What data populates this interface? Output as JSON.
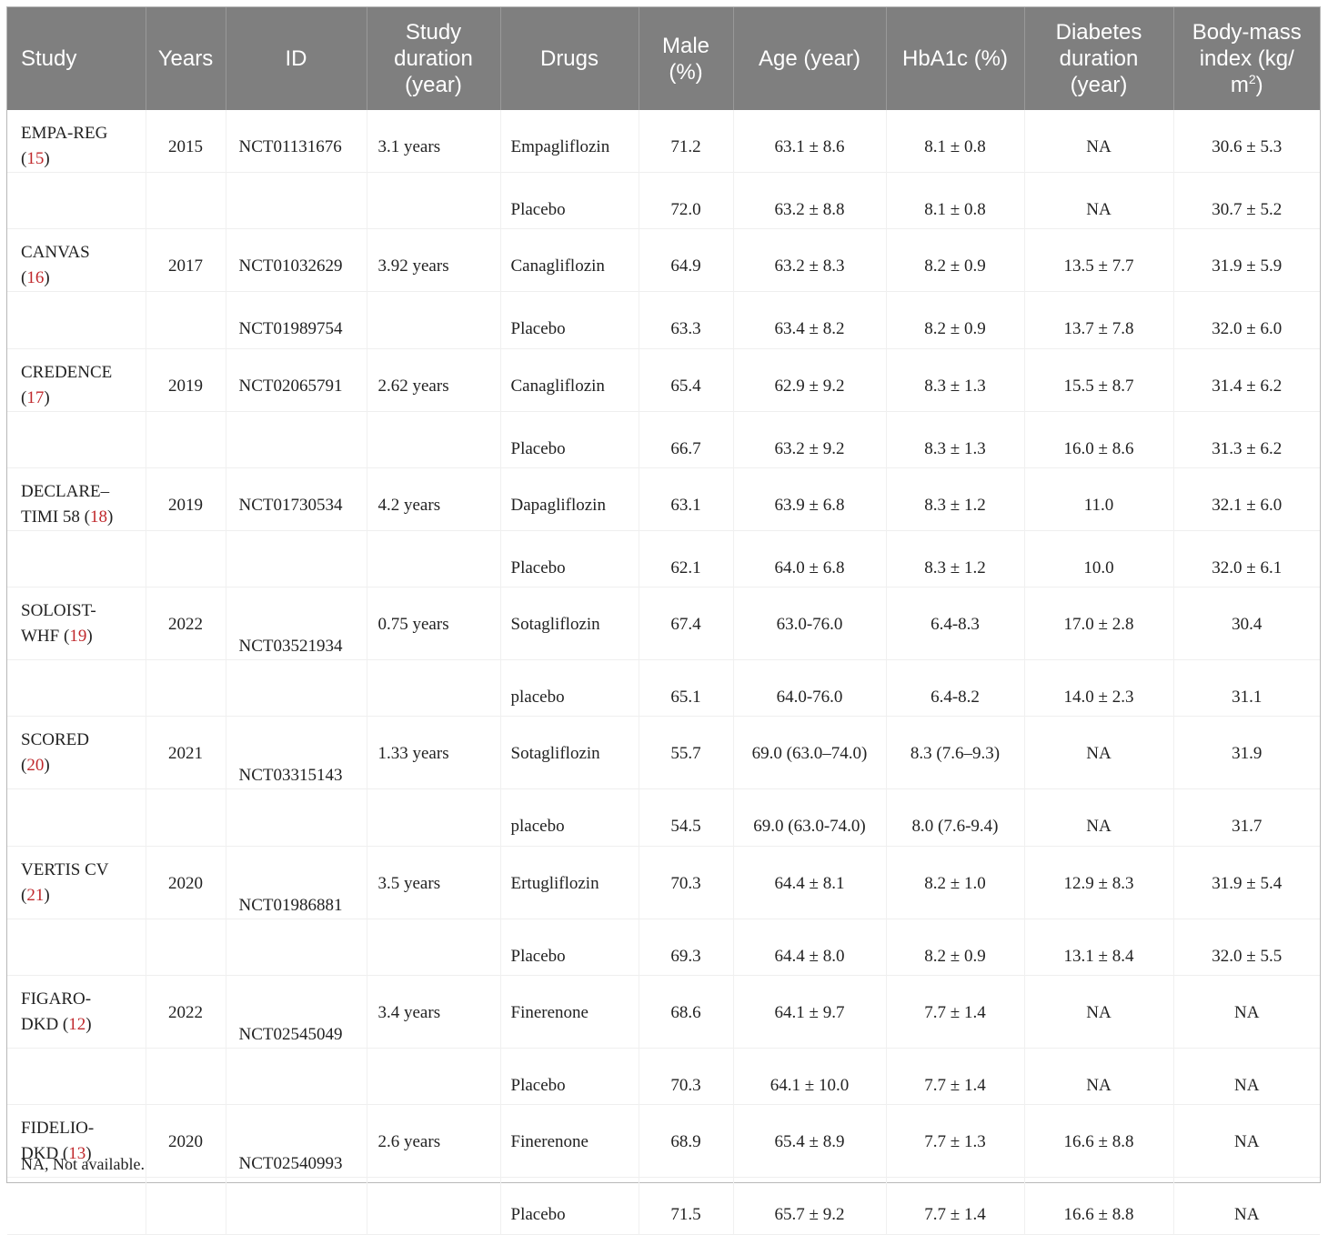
{
  "headers": {
    "study": "Study",
    "years": "Years",
    "id": "ID",
    "duration_l1": "Study",
    "duration_l2": "duration",
    "duration_l3": "(year)",
    "drugs": "Drugs",
    "male_l1": "Male",
    "male_l2": "(%)",
    "age": "Age (year)",
    "hba1c": "HbA1c (%)",
    "diabetes_l1": "Diabetes",
    "diabetes_l2": "duration",
    "diabetes_l3": "(year)",
    "bmi_l1": "Body-mass",
    "bmi_l2": "index (kg/",
    "bmi_l3": "m",
    "bmi_sup": "2",
    "bmi_l3_end": ")"
  },
  "studies": [
    {
      "name1": "EMPA-REG",
      "name2": "(",
      "ref": "15",
      "name_end": ")",
      "year": "2015",
      "id_a": "NCT01131676",
      "id_b": "",
      "duration": "3.1 years",
      "arms": [
        {
          "drug": "Empagliflozin",
          "male": "71.2",
          "age": "63.1 ± 8.6",
          "hba1c": "8.1 ± 0.8",
          "diabetes": "NA",
          "bmi": "30.6 ± 5.3"
        },
        {
          "drug": "Placebo",
          "male": "72.0",
          "age": "63.2 ± 8.8",
          "hba1c": "8.1 ± 0.8",
          "diabetes": "NA",
          "bmi": "30.7 ± 5.2"
        }
      ]
    },
    {
      "name1": "CANVAS",
      "name2": "(",
      "ref": "16",
      "name_end": ")",
      "year": "2017",
      "id_a": "NCT01032629",
      "id_b": "NCT01989754",
      "duration": "3.92 years",
      "arms": [
        {
          "drug": "Canagliflozin",
          "male": "64.9",
          "age": "63.2 ± 8.3",
          "hba1c": "8.2 ± 0.9",
          "diabetes": "13.5 ± 7.7",
          "bmi": "31.9 ± 5.9"
        },
        {
          "drug": "Placebo",
          "male": "63.3",
          "age": "63.4 ± 8.2",
          "hba1c": "8.2 ± 0.9",
          "diabetes": "13.7 ± 7.8",
          "bmi": "32.0 ± 6.0"
        }
      ]
    },
    {
      "name1": "CREDENCE",
      "name2": "(",
      "ref": "17",
      "name_end": ")",
      "year": "2019",
      "id_a": "NCT02065791",
      "id_b": "",
      "duration": "2.62 years",
      "arms": [
        {
          "drug": "Canagliflozin",
          "male": "65.4",
          "age": "62.9 ± 9.2",
          "hba1c": "8.3 ± 1.3",
          "diabetes": "15.5 ± 8.7",
          "bmi": "31.4 ± 6.2"
        },
        {
          "drug": "Placebo",
          "male": "66.7",
          "age": "63.2 ± 9.2",
          "hba1c": "8.3 ± 1.3",
          "diabetes": "16.0 ± 8.6",
          "bmi": "31.3 ± 6.2"
        }
      ]
    },
    {
      "name1": "DECLARE–",
      "name2": "TIMI 58 (",
      "ref": "18",
      "name_end": ")",
      "year": "2019",
      "id_a": "NCT01730534",
      "id_b": "",
      "duration": "4.2 years",
      "arms": [
        {
          "drug": "Dapagliflozin",
          "male": "63.1",
          "age": "63.9 ± 6.8",
          "hba1c": "8.3 ± 1.2",
          "diabetes": "11.0",
          "bmi": "32.1 ± 6.0"
        },
        {
          "drug": "Placebo",
          "male": "62.1",
          "age": "64.0 ± 6.8",
          "hba1c": "8.3 ± 1.2",
          "diabetes": "10.0",
          "bmi": "32.0 ± 6.1"
        }
      ]
    },
    {
      "name1": "SOLOIST-",
      "name2": "WHF (",
      "ref": "19",
      "name_end": ")",
      "year": "2022",
      "id_a": "NCT03521934",
      "id_b": "",
      "duration": "0.75 years",
      "arms": [
        {
          "drug": "Sotagliflozin",
          "male": "67.4",
          "age": "63.0-76.0",
          "hba1c": "6.4-8.3",
          "diabetes": "17.0 ± 2.8",
          "bmi": "30.4"
        },
        {
          "drug": "placebo",
          "male": "65.1",
          "age": "64.0-76.0",
          "hba1c": "6.4-8.2",
          "diabetes": "14.0 ± 2.3",
          "bmi": "31.1"
        }
      ]
    },
    {
      "name1": "SCORED",
      "name2": "(",
      "ref": "20",
      "name_end": ")",
      "year": "2021",
      "id_a": "NCT03315143",
      "id_b": "",
      "duration": "1.33 years",
      "arms": [
        {
          "drug": "Sotagliflozin",
          "male": "55.7",
          "age": "69.0 (63.0–74.0)",
          "hba1c": "8.3 (7.6–9.3)",
          "diabetes": "NA",
          "bmi": "31.9"
        },
        {
          "drug": "placebo",
          "male": "54.5",
          "age": "69.0 (63.0-74.0)",
          "hba1c": "8.0 (7.6-9.4)",
          "diabetes": "NA",
          "bmi": "31.7"
        }
      ]
    },
    {
      "name1": "VERTIS CV",
      "name2": "(",
      "ref": "21",
      "name_end": ")",
      "year": "2020",
      "id_a": "NCT01986881",
      "id_b": "",
      "duration": "3.5 years",
      "arms": [
        {
          "drug": "Ertugliflozin",
          "male": "70.3",
          "age": "64.4 ± 8.1",
          "hba1c": "8.2 ± 1.0",
          "diabetes": "12.9 ± 8.3",
          "bmi": "31.9 ± 5.4"
        },
        {
          "drug": "Placebo",
          "male": "69.3",
          "age": "64.4 ± 8.0",
          "hba1c": "8.2 ± 0.9",
          "diabetes": "13.1 ± 8.4",
          "bmi": "32.0 ± 5.5"
        }
      ]
    },
    {
      "name1": "FIGARO-",
      "name2": "DKD (",
      "ref": "12",
      "name_end": ")",
      "year": "2022",
      "id_a": "NCT02545049",
      "id_b": "",
      "duration": "3.4 years",
      "arms": [
        {
          "drug": "Finerenone",
          "male": "68.6",
          "age": "64.1 ± 9.7",
          "hba1c": "7.7 ± 1.4",
          "diabetes": "NA",
          "bmi": "NA"
        },
        {
          "drug": "Placebo",
          "male": "70.3",
          "age": "64.1 ± 10.0",
          "hba1c": "7.7 ± 1.4",
          "diabetes": "NA",
          "bmi": "NA"
        }
      ]
    },
    {
      "name1": "FIDELIO-",
      "name2": "DKD (",
      "ref": "13",
      "name_end": ")",
      "year": "2020",
      "id_a": "NCT02540993",
      "id_b": "",
      "duration": "2.6 years",
      "arms": [
        {
          "drug": "Finerenone",
          "male": "68.9",
          "age": "65.4 ± 8.9",
          "hba1c": "7.7 ± 1.3",
          "diabetes": "16.6 ± 8.8",
          "bmi": "NA"
        },
        {
          "drug": "Placebo",
          "male": "71.5",
          "age": "65.7 ± 9.2",
          "hba1c": "7.7 ± 1.4",
          "diabetes": "16.6 ± 8.8",
          "bmi": "NA"
        }
      ]
    }
  ],
  "footnote": "NA, Not available."
}
